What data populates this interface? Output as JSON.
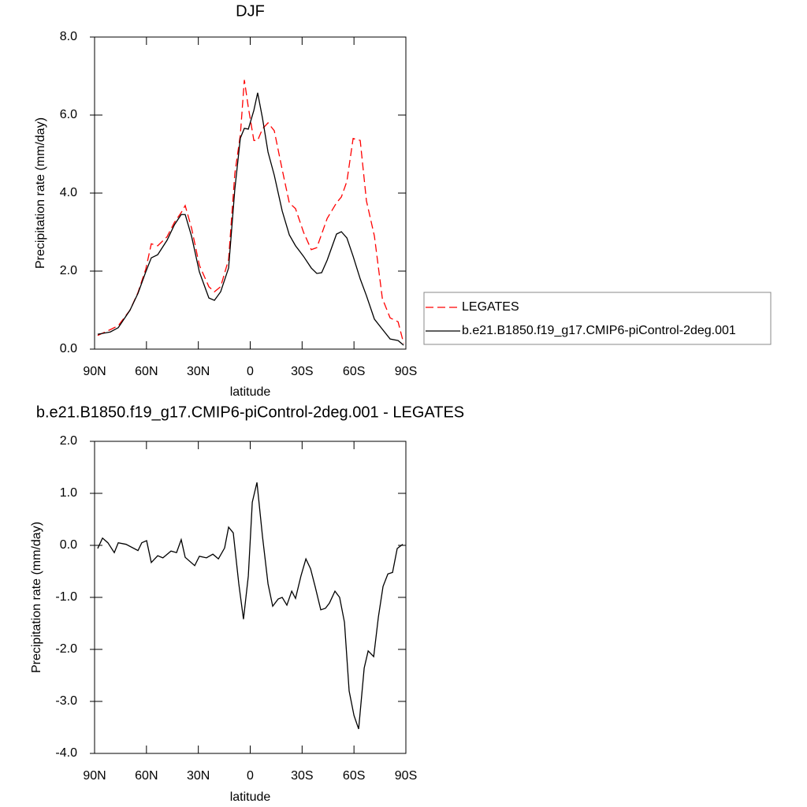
{
  "chart_data": [
    {
      "type": "line",
      "title": "DJF",
      "x_label": "latitude",
      "y_label": "Precipitation rate (mm/day)",
      "x": [
        88.2,
        80.9,
        76.3,
        69.5,
        64.9,
        60.4,
        57.2,
        53.5,
        48.1,
        43.8,
        39.9,
        37.6,
        33.9,
        29.4,
        23.9,
        20.7,
        17.1,
        12.5,
        8.9,
        5.7,
        3.4,
        1.1,
        -2.1,
        -4.3,
        -7.1,
        -10.3,
        -13.9,
        -18.5,
        -22.6,
        -26.2,
        -30.8,
        -35.3,
        -38.5,
        -41.3,
        -44.5,
        -49.9,
        -52.7,
        -55.9,
        -59.5,
        -63.6,
        -67.2,
        -71.8,
        -76.4,
        -80.9,
        -85.5,
        -88.7
      ],
      "series": [
        {
          "name": "LEGATES",
          "color": "#ff0000",
          "line_style": "dashed",
          "values": [
            0.35,
            0.5,
            0.6,
            1.0,
            1.45,
            2.05,
            2.7,
            2.65,
            2.88,
            3.25,
            3.5,
            3.68,
            3.1,
            2.15,
            1.6,
            1.47,
            1.6,
            2.3,
            4.5,
            5.5,
            6.9,
            6.2,
            5.35,
            5.35,
            5.65,
            5.8,
            5.6,
            4.6,
            3.75,
            3.6,
            3.0,
            2.55,
            2.6,
            2.95,
            3.35,
            3.75,
            3.9,
            4.3,
            5.4,
            5.35,
            3.8,
            2.9,
            1.3,
            0.8,
            0.7,
            0.15
          ]
        },
        {
          "name": "b.e21.B1850.f19_g17.CMIP6-piControl-2deg.001",
          "color": "#000000",
          "line_style": "solid",
          "values": [
            0.38,
            0.44,
            0.55,
            1.0,
            1.43,
            1.98,
            2.34,
            2.42,
            2.79,
            3.19,
            3.45,
            3.45,
            2.89,
            1.98,
            1.31,
            1.25,
            1.47,
            2.08,
            4.1,
            5.41,
            5.66,
            5.64,
            6.12,
            6.57,
            5.92,
            5.05,
            4.46,
            3.54,
            2.93,
            2.65,
            2.38,
            2.08,
            1.94,
            1.96,
            2.28,
            2.95,
            3.01,
            2.85,
            2.38,
            1.8,
            1.37,
            0.77,
            0.51,
            0.26,
            0.22,
            0.1
          ]
        }
      ],
      "xlim": [
        90,
        -90
      ],
      "xticks": [
        {
          "value": 90,
          "label": "90N"
        },
        {
          "value": 60,
          "label": "60N"
        },
        {
          "value": 30,
          "label": "30N"
        },
        0,
        {
          "value": -30,
          "label": "30S"
        },
        {
          "value": -60,
          "label": "60S"
        },
        {
          "value": -90,
          "label": "90S"
        }
      ],
      "ylim": [
        0,
        8
      ],
      "yticks": [
        {
          "value": 0,
          "label": "0.0"
        },
        {
          "value": 2,
          "label": "2.0"
        },
        {
          "value": 4,
          "label": "4.0"
        },
        {
          "value": 6,
          "label": "6.0"
        },
        {
          "value": 8,
          "label": "8.0"
        }
      ],
      "legend": "right"
    },
    {
      "type": "line",
      "title": "b.e21.B1850.f19_g17.CMIP6-piControl-2deg.001 - LEGATES",
      "x_label": "latitude",
      "y_label": "Precipitation rate (mm/day)",
      "x": [
        88.2,
        85.4,
        82.3,
        78.6,
        76.3,
        71.8,
        64.9,
        62.7,
        59.9,
        57.2,
        53.5,
        50.5,
        45.8,
        42.6,
        39.9,
        37.6,
        32.1,
        29.4,
        25.3,
        21.6,
        18.4,
        14.8,
        12.5,
        9.8,
        6.6,
        3.9,
        1.1,
        -1.2,
        -3.9,
        -7.1,
        -10.3,
        -13.0,
        -16.2,
        -18.5,
        -21.2,
        -24.0,
        -26.2,
        -29.4,
        -32.2,
        -34.9,
        -37.6,
        -40.8,
        -43.5,
        -45.8,
        -49.0,
        -51.7,
        -54.5,
        -57.2,
        -60.0,
        -62.7,
        -65.9,
        -68.2,
        -71.4,
        -74.1,
        -76.8,
        -79.6,
        -82.3,
        -85.0,
        -88.2
      ],
      "values": [
        -0.06,
        0.14,
        0.05,
        -0.14,
        0.05,
        0.02,
        -0.1,
        0.05,
        0.09,
        -0.33,
        -0.2,
        -0.24,
        -0.11,
        -0.14,
        0.11,
        -0.23,
        -0.39,
        -0.21,
        -0.24,
        -0.17,
        -0.26,
        -0.05,
        0.35,
        0.24,
        -0.74,
        -1.42,
        -0.59,
        0.83,
        1.21,
        0.17,
        -0.74,
        -1.17,
        -1.03,
        -1.0,
        -1.15,
        -0.88,
        -1.02,
        -0.58,
        -0.26,
        -0.45,
        -0.8,
        -1.24,
        -1.21,
        -1.11,
        -0.88,
        -1.0,
        -1.48,
        -2.8,
        -3.27,
        -3.53,
        -2.36,
        -2.03,
        -2.14,
        -1.38,
        -0.79,
        -0.55,
        -0.52,
        -0.06,
        0.02
      ],
      "color": "#000000",
      "xlim": [
        90,
        -90
      ],
      "xticks": [
        {
          "value": 90,
          "label": "90N"
        },
        {
          "value": 60,
          "label": "60N"
        },
        {
          "value": 30,
          "label": "30N"
        },
        0,
        {
          "value": -30,
          "label": "30S"
        },
        {
          "value": -60,
          "label": "60S"
        },
        {
          "value": -90,
          "label": "90S"
        }
      ],
      "ylim": [
        -4,
        2
      ],
      "yticks": [
        {
          "value": -4,
          "label": "-4.0"
        },
        {
          "value": -3,
          "label": "-3.0"
        },
        {
          "value": -2,
          "label": "-2.0"
        },
        {
          "value": -1,
          "label": "-1.0"
        },
        {
          "value": 0,
          "label": "0.0"
        },
        {
          "value": 1,
          "label": "1.0"
        },
        {
          "value": 2,
          "label": "2.0"
        }
      ]
    }
  ]
}
